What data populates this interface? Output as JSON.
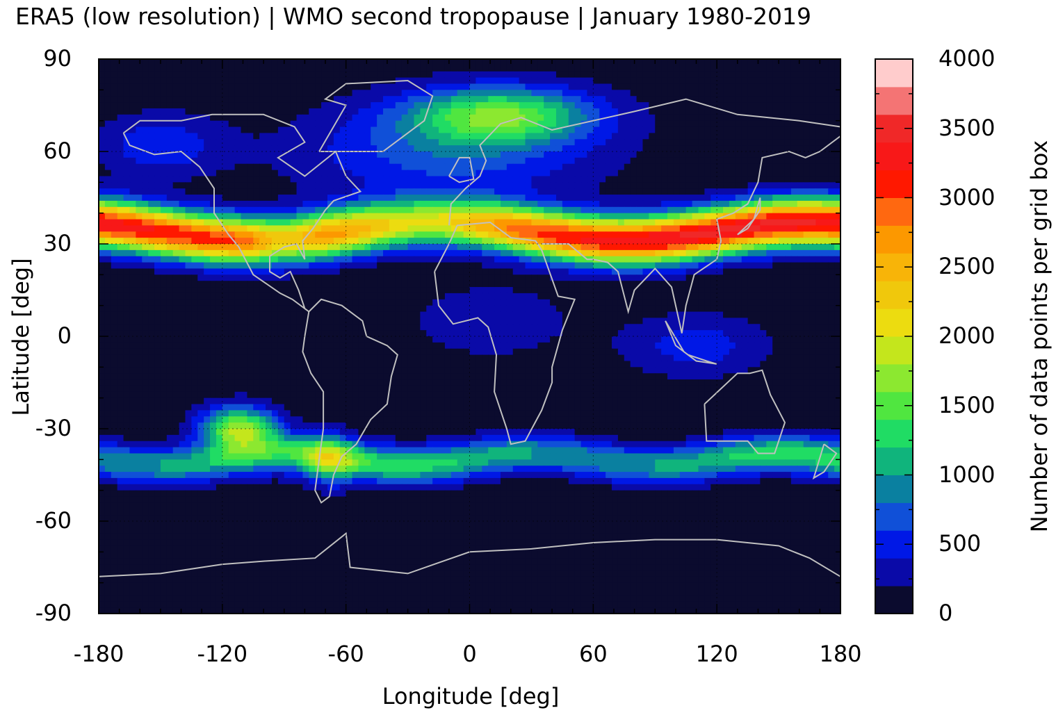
{
  "title": "ERA5 (low resolution) | WMO second tropopause | January 1980-2019",
  "chart_data": {
    "type": "heatmap",
    "title": "ERA5 (low resolution) | WMO second tropopause | January 1980-2019",
    "xlabel": "Longitude [deg]",
    "ylabel": "Latitude [deg]",
    "xlim": [
      -180,
      180
    ],
    "ylim": [
      -90,
      90
    ],
    "x_ticks": [
      "-180",
      "-120",
      "-60",
      "0",
      "60",
      "120",
      "180"
    ],
    "y_ticks": [
      "90",
      "60",
      "30",
      "0",
      "-30",
      "-60",
      "-90"
    ],
    "grid": true,
    "colorbar": {
      "label": "Number of data points per grid box",
      "range": [
        0,
        4000
      ],
      "ticks": [
        "4000",
        "3500",
        "3000",
        "2500",
        "2000",
        "1500",
        "1000",
        "500",
        "0"
      ],
      "colors": [
        "#0b0b2e",
        "#0a0aa8",
        "#0018e6",
        "#1050d8",
        "#0a80a0",
        "#10b47c",
        "#20dc64",
        "#50e640",
        "#8ce830",
        "#c4e61c",
        "#ecdc10",
        "#f0c80c",
        "#f8b408",
        "#fc9800",
        "#ff6810",
        "#ff1800",
        "#f81818",
        "#f02828",
        "#f47474",
        "#ffcccc"
      ]
    },
    "bands": [
      {
        "lat_center": 35,
        "lat_halfwidth": 14,
        "peak": 3400,
        "note": "northern subtropical band"
      },
      {
        "lat_center": -40,
        "lat_halfwidth": 12,
        "peak": 1600,
        "note": "southern mid-latitude band"
      },
      {
        "lat_center": 73,
        "lon_center": 15,
        "peak": 1400,
        "note": "north Atlantic / Europe"
      },
      {
        "lat_center": -30,
        "lon_center": -112,
        "peak": 1700,
        "note": "southeast Pacific"
      },
      {
        "lat_center": -3,
        "lon_center": 110,
        "peak": 450,
        "note": "maritime continent"
      }
    ]
  }
}
